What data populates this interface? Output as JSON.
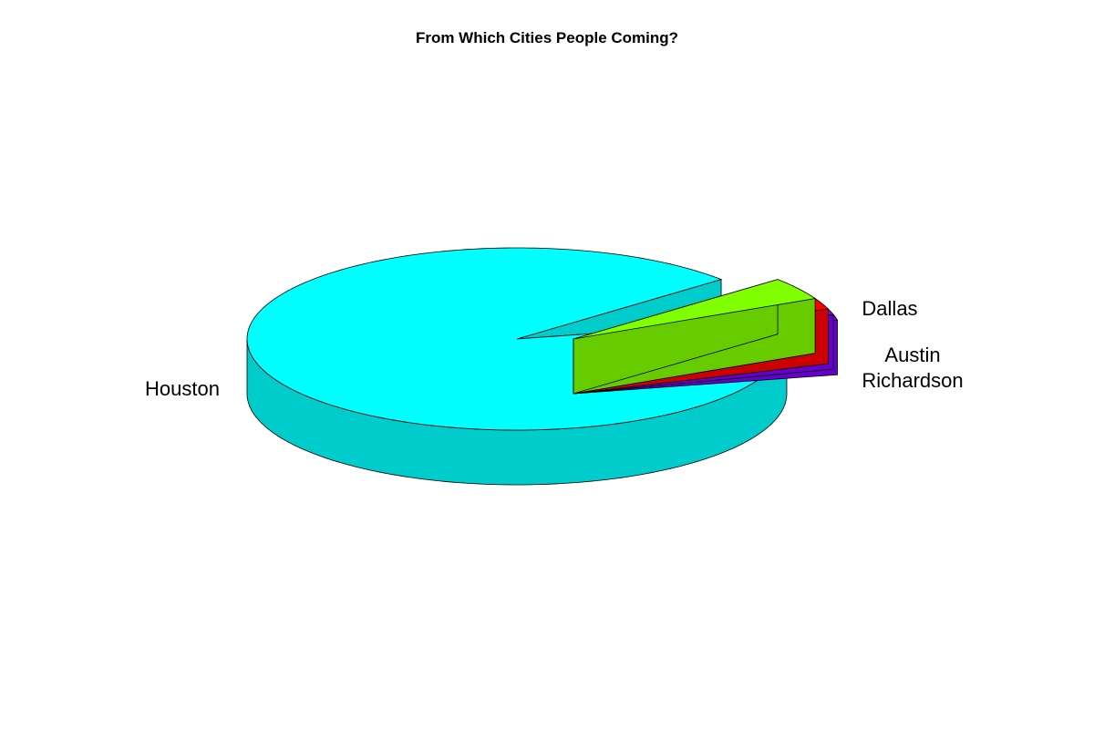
{
  "chart_data": {
    "type": "pie",
    "style": "3d",
    "title": "From Which Cities People Coming?",
    "slices": [
      {
        "label": "Houston",
        "value": 92,
        "color": "#00ffff",
        "side_color": "#00cccc"
      },
      {
        "label": "Dallas",
        "value": 4,
        "color": "#80ff00",
        "side_color": "#66cc00"
      },
      {
        "label": "",
        "value": 2,
        "color": "#ff0000",
        "side_color": "#cc0000"
      },
      {
        "label": "Austin",
        "value": 1,
        "color": "#8000ff",
        "side_color": "#6600cc"
      },
      {
        "label": "Richardson",
        "value": 1,
        "color": "#8000ff",
        "side_color": "#6600cc"
      }
    ]
  }
}
